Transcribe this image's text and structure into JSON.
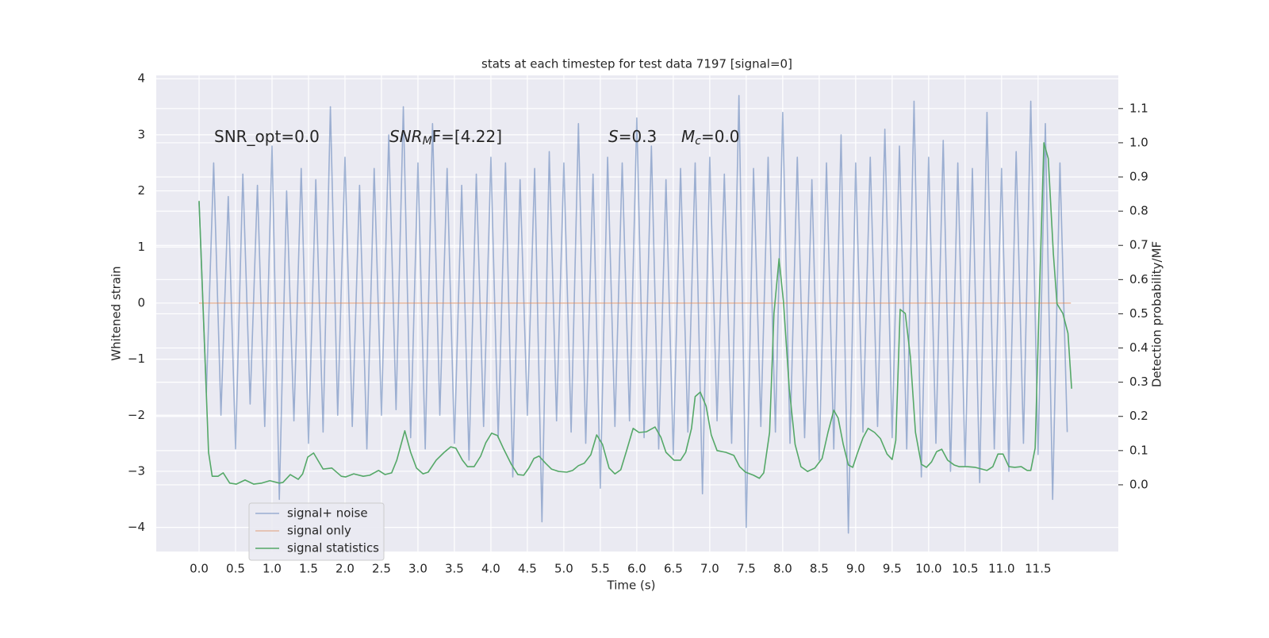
{
  "chart_data": {
    "type": "line",
    "title": "stats at each timestep for test data 7197 [signal=0]",
    "xlabel": "Time (s)",
    "ylabel": "Whitened strain",
    "y2label": "Detection probability/MF",
    "annotations": [
      {
        "text": "SNR_opt=0.0"
      },
      {
        "symbol": "SNR",
        "sub": "M",
        "rest": "F=[4.22]"
      },
      {
        "symbol": "S",
        "rest": "=0.3"
      },
      {
        "symbol": "M",
        "sub": "c",
        "rest": "=0.0"
      }
    ],
    "xlim": [
      -0.587,
      12.6
    ],
    "xticks": [
      {
        "value": 0,
        "label": "0.0"
      },
      0.5,
      {
        "value": 1,
        "label": "1.0"
      },
      1.5,
      {
        "value": 2,
        "label": "2.0"
      },
      2.5,
      {
        "value": 3,
        "label": "3.0"
      },
      3.5,
      {
        "value": 4,
        "label": "4.0"
      },
      4.5,
      {
        "value": 5,
        "label": "5.0"
      },
      5.5,
      {
        "value": 6,
        "label": "6.0"
      },
      6.5,
      {
        "value": 7,
        "label": "7.0"
      },
      7.5,
      {
        "value": 8,
        "label": "8.0"
      },
      8.5,
      {
        "value": 9,
        "label": "9.0"
      },
      9.5,
      {
        "value": 10,
        "label": "10.0"
      },
      10.5,
      {
        "value": 11,
        "label": "11.0"
      },
      11.5
    ],
    "ylim": [
      -4.43,
      4.06
    ],
    "yticks": [
      {
        "value": -4,
        "label": "−4"
      },
      {
        "value": -3,
        "label": "−3"
      },
      {
        "value": -2,
        "label": "−2"
      },
      {
        "value": -1,
        "label": "−1"
      },
      0,
      1,
      2,
      3,
      4
    ],
    "y2lim": [
      -0.195,
      1.197
    ],
    "y2ticks": [
      {
        "value": 0,
        "label": "0.0"
      },
      0.1,
      0.2,
      0.3,
      0.4,
      0.5,
      0.6,
      0.7,
      0.8,
      0.9,
      {
        "value": 1,
        "label": "1.0"
      },
      1.1
    ],
    "grid": true,
    "legend": "lower left",
    "series": [
      {
        "name": "signal+ noise",
        "color": "#4c72b0",
        "alpha": 0.5,
        "x": [
          0,
          0.1,
          0.2,
          0.3,
          0.4,
          0.5,
          0.6,
          0.7,
          0.8,
          0.9,
          1,
          1.1,
          1.2,
          1.3,
          1.4,
          1.5,
          1.6,
          1.7,
          1.8,
          1.9,
          2,
          2.1,
          2.2,
          2.3,
          2.4,
          2.5,
          2.6,
          2.7,
          2.8,
          2.9,
          3,
          3.1,
          3.2,
          3.3,
          3.4,
          3.5,
          3.6,
          3.7,
          3.8,
          3.9,
          4,
          4.1,
          4.2,
          4.3,
          4.4,
          4.5,
          4.6,
          4.7,
          4.8,
          4.9,
          5,
          5.1,
          5.2,
          5.3,
          5.4,
          5.5,
          5.6,
          5.7,
          5.8,
          5.9,
          6,
          6.1,
          6.2,
          6.3,
          6.4,
          6.5,
          6.6,
          6.7,
          6.8,
          6.9,
          7,
          7.1,
          7.2,
          7.3,
          7.4,
          7.5,
          7.6,
          7.7,
          7.8,
          7.9,
          8,
          8.1,
          8.2,
          8.3,
          8.4,
          8.5,
          8.6,
          8.7,
          8.8,
          8.9,
          9,
          9.1,
          9.2,
          9.3,
          9.4,
          9.5,
          9.6,
          9.7,
          9.8,
          9.9,
          10,
          10.1,
          10.2,
          10.3,
          10.4,
          10.5,
          10.6,
          10.7,
          10.8,
          10.9,
          11,
          11.1,
          11.2,
          11.3,
          11.4,
          11.5,
          11.6,
          11.7,
          11.8,
          11.9
        ],
        "values": [
          1.8,
          -1.6,
          2.5,
          -2.0,
          1.9,
          -2.6,
          2.3,
          -1.8,
          2.1,
          -2.2,
          2.8,
          -3.5,
          2.0,
          -2.1,
          2.4,
          -2.5,
          2.2,
          -2.3,
          3.5,
          -2.0,
          2.6,
          -2.2,
          2.1,
          -2.6,
          2.4,
          -2.0,
          3.0,
          -1.9,
          3.5,
          -2.4,
          2.5,
          -2.6,
          3.2,
          -2.0,
          2.4,
          -2.5,
          2.1,
          -2.8,
          2.3,
          -2.2,
          2.6,
          -2.4,
          2.5,
          -3.1,
          2.2,
          -2.0,
          2.4,
          -3.9,
          2.7,
          -2.1,
          2.5,
          -2.3,
          3.2,
          -2.5,
          2.3,
          -3.3,
          2.6,
          -2.2,
          2.5,
          -2.1,
          3.3,
          -2.4,
          2.8,
          -2.6,
          2.2,
          -2.7,
          2.4,
          -2.3,
          2.5,
          -3.4,
          2.6,
          -2.1,
          2.3,
          -2.5,
          3.7,
          -4.0,
          2.4,
          -2.2,
          2.6,
          -2.3,
          3.4,
          -2.5,
          2.6,
          -2.4,
          2.2,
          -2.8,
          2.5,
          -2.6,
          3.0,
          -4.1,
          2.5,
          -2.3,
          2.6,
          -2.2,
          3.1,
          -2.4,
          2.8,
          -2.6,
          3.6,
          -3.1,
          2.6,
          -2.5,
          2.9,
          -3.0,
          2.5,
          -2.9,
          2.4,
          -3.2,
          3.4,
          -2.6,
          2.4,
          -3.0,
          2.7,
          -2.5,
          3.6,
          -2.7,
          3.2,
          -3.5,
          2.5,
          -2.3
        ]
      },
      {
        "name": "signal only",
        "color": "#dd8452",
        "alpha": 0.5,
        "x": [
          0,
          11.95
        ],
        "values": [
          0,
          0
        ]
      },
      {
        "name": "signal statistics",
        "color": "#55a868",
        "axis": "y2",
        "x": [
          0,
          0.13,
          0.18,
          0.26,
          0.33,
          0.42,
          0.51,
          0.63,
          0.75,
          0.86,
          0.97,
          1.1,
          1.15,
          1.25,
          1.36,
          1.42,
          1.49,
          1.57,
          1.7,
          1.82,
          1.95,
          2.01,
          2.12,
          2.25,
          2.34,
          2.46,
          2.55,
          2.64,
          2.71,
          2.82,
          2.9,
          2.98,
          3.07,
          3.14,
          3.25,
          3.36,
          3.45,
          3.52,
          3.61,
          3.68,
          3.77,
          3.86,
          3.93,
          4.01,
          4.09,
          4.17,
          4.28,
          4.37,
          4.45,
          4.52,
          4.59,
          4.66,
          4.75,
          4.83,
          4.93,
          5.04,
          5.12,
          5.2,
          5.28,
          5.37,
          5.45,
          5.53,
          5.62,
          5.7,
          5.78,
          5.86,
          5.95,
          6.03,
          6.13,
          6.25,
          6.33,
          6.4,
          6.51,
          6.6,
          6.67,
          6.75,
          6.8,
          6.87,
          6.95,
          7.02,
          7.1,
          7.22,
          7.33,
          7.41,
          7.49,
          7.6,
          7.68,
          7.74,
          7.82,
          7.88,
          7.95,
          8.01,
          8.09,
          8.17,
          8.25,
          8.34,
          8.44,
          8.54,
          8.62,
          8.7,
          8.76,
          8.83,
          8.9,
          8.96,
          9.02,
          9.1,
          9.17,
          9.26,
          9.34,
          9.43,
          9.5,
          9.55,
          9.61,
          9.68,
          9.75,
          9.82,
          9.9,
          9.97,
          10.04,
          10.11,
          10.18,
          10.26,
          10.35,
          10.42,
          10.53,
          10.64,
          10.73,
          10.8,
          10.88,
          10.95,
          11.02,
          11.1,
          11.18,
          11.27,
          11.35,
          11.4,
          11.46,
          11.51,
          11.58,
          11.64,
          11.71,
          11.76,
          11.84,
          11.91,
          11.96
        ],
        "values": [
          0.83,
          0.095,
          0.025,
          0.025,
          0.035,
          0.005,
          0.002,
          0.014,
          0.002,
          0.005,
          0.012,
          0.005,
          0.007,
          0.03,
          0.016,
          0.032,
          0.081,
          0.093,
          0.046,
          0.049,
          0.025,
          0.023,
          0.032,
          0.025,
          0.028,
          0.042,
          0.03,
          0.035,
          0.072,
          0.158,
          0.095,
          0.049,
          0.032,
          0.037,
          0.072,
          0.095,
          0.111,
          0.107,
          0.072,
          0.053,
          0.053,
          0.084,
          0.123,
          0.151,
          0.144,
          0.107,
          0.06,
          0.03,
          0.028,
          0.049,
          0.077,
          0.084,
          0.063,
          0.046,
          0.039,
          0.037,
          0.042,
          0.056,
          0.063,
          0.088,
          0.146,
          0.118,
          0.049,
          0.032,
          0.044,
          0.1,
          0.165,
          0.153,
          0.155,
          0.169,
          0.139,
          0.095,
          0.072,
          0.072,
          0.095,
          0.165,
          0.258,
          0.271,
          0.23,
          0.146,
          0.1,
          0.095,
          0.086,
          0.053,
          0.037,
          0.028,
          0.019,
          0.035,
          0.153,
          0.501,
          0.661,
          0.536,
          0.281,
          0.118,
          0.053,
          0.039,
          0.049,
          0.077,
          0.153,
          0.218,
          0.195,
          0.118,
          0.058,
          0.051,
          0.09,
          0.137,
          0.165,
          0.153,
          0.135,
          0.09,
          0.074,
          0.13,
          0.513,
          0.501,
          0.374,
          0.153,
          0.06,
          0.051,
          0.067,
          0.097,
          0.104,
          0.072,
          0.058,
          0.053,
          0.053,
          0.051,
          0.046,
          0.042,
          0.053,
          0.09,
          0.09,
          0.053,
          0.051,
          0.053,
          0.042,
          0.042,
          0.107,
          0.49,
          1.0,
          0.954,
          0.675,
          0.529,
          0.501,
          0.443,
          0.281
        ]
      }
    ]
  }
}
